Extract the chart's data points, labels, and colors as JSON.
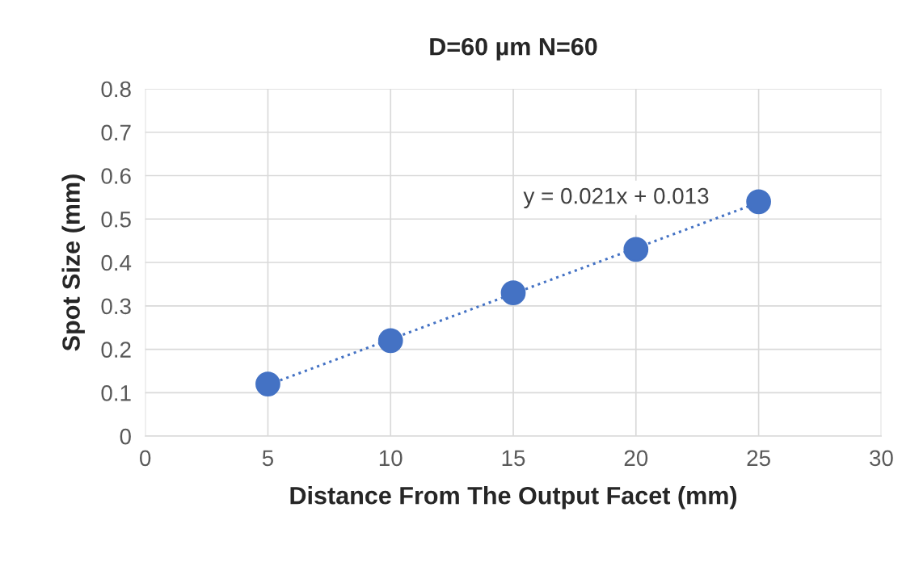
{
  "chart_data": {
    "type": "scatter",
    "title": "D=60 µm N=60",
    "xlabel": "Distance From The Output Facet (mm)",
    "ylabel": "Spot Size (mm)",
    "x": [
      5,
      10,
      15,
      20,
      25
    ],
    "series": [
      {
        "color": "#4472c4",
        "values": [
          0.12,
          0.22,
          0.33,
          0.43,
          0.54
        ],
        "marker": "circle"
      },
      {
        "type": "line",
        "color": "#4472c4",
        "x": [
          5,
          25
        ],
        "values": [
          0.118,
          0.538
        ],
        "line_style": "dotted"
      }
    ],
    "annotations": [
      "y = 0.021x + 0.013"
    ],
    "xlim": [
      0,
      30
    ],
    "xticks": [
      0,
      5,
      10,
      15,
      20,
      25,
      30
    ],
    "ylim": [
      0,
      0.8
    ],
    "yticks": [
      0,
      0.1,
      0.2,
      0.3,
      0.4,
      0.5,
      0.6,
      0.7,
      0.8
    ],
    "grid": true
  }
}
